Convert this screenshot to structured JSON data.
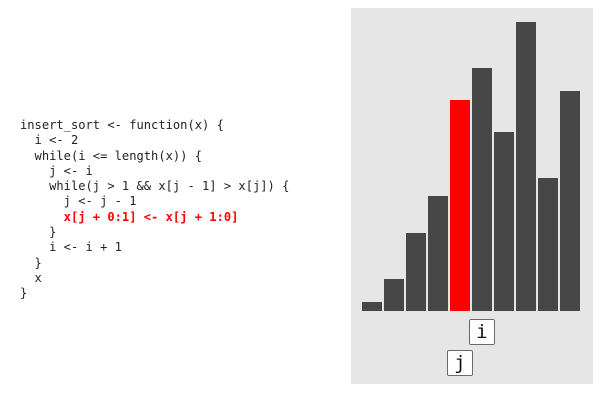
{
  "code": {
    "lines": [
      "insert_sort <- function(x) {",
      "  i <- 2",
      "  while(i <= length(x)) {",
      "    j <- i",
      "    while(j > 1 && x[j - 1] > x[j]) {",
      "      j <- j - 1",
      "      x[j + 0:1] <- x[j + 1:0]",
      "    }",
      "    i <- i + 1",
      "  }",
      "  x",
      "}"
    ],
    "highlighted_line": 6,
    "highlight_color": "#ff0000"
  },
  "array_viz": {
    "values": [
      2,
      7,
      17,
      25,
      46,
      53,
      39,
      63,
      29,
      48
    ],
    "max_value": 63,
    "active_index": 4,
    "bar_color": "#474747",
    "active_color": "#ff0000",
    "panel_color": "#e6e6e6",
    "pointers": [
      {
        "label": "i",
        "index": 5
      },
      {
        "label": "j",
        "index": 4
      }
    ]
  }
}
